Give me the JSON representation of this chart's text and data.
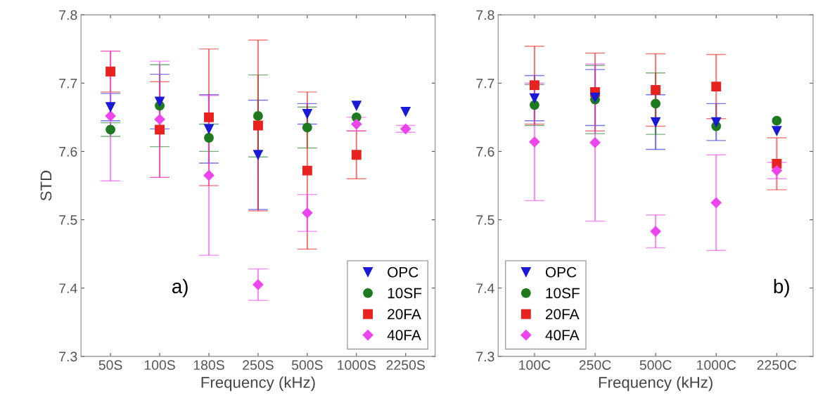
{
  "chart_data": [
    {
      "type": "scatter",
      "xlabel": "Frequency (kHz)",
      "ylabel": "STD",
      "categories": [
        "50S",
        "100S",
        "180S",
        "250S",
        "500S",
        "1000S",
        "2250S"
      ],
      "ylim": [
        7.3,
        7.8
      ],
      "yticks": [
        7.3,
        7.4,
        7.5,
        7.6,
        7.7,
        7.8
      ],
      "grid": false,
      "legend": "bottom right",
      "annotations": [
        "a)"
      ],
      "series": [
        {
          "name": "OPC",
          "color": "#1a1ad6",
          "marker": "triangle",
          "values": [
            7.665,
            7.673,
            7.633,
            7.595,
            7.655,
            7.667,
            7.658
          ],
          "errors": [
            0.02,
            0.04,
            0.05,
            0.08,
            0.015,
            null,
            null
          ]
        },
        {
          "name": "10SF",
          "color": "#1f7a1f",
          "marker": "circle",
          "values": [
            7.632,
            7.667,
            7.62,
            7.652,
            7.635,
            7.65,
            null
          ],
          "errors": [
            0.01,
            0.06,
            0.02,
            0.06,
            0.03,
            null,
            null
          ]
        },
        {
          "name": "20FA",
          "color": "#e8231f",
          "marker": "square",
          "values": [
            7.717,
            7.632,
            7.65,
            7.638,
            7.572,
            7.595,
            null
          ],
          "errors": [
            0.03,
            0.07,
            0.1,
            0.125,
            0.115,
            0.035,
            null
          ]
        },
        {
          "name": "40FA",
          "color": "#ee44ee",
          "marker": "diamond",
          "values": [
            7.652,
            7.647,
            7.565,
            7.405,
            7.51,
            7.64,
            7.633
          ],
          "errors": [
            0.095,
            0.085,
            0.117,
            0.023,
            0.027,
            0.01,
            0.005
          ]
        }
      ]
    },
    {
      "type": "scatter",
      "xlabel": "Frequency (kHz)",
      "categories": [
        "100C",
        "250C",
        "500C",
        "1000C",
        "2250C"
      ],
      "ylim": [
        7.3,
        7.8
      ],
      "yticks": [
        7.3,
        7.4,
        7.5,
        7.6,
        7.7,
        7.8
      ],
      "grid": false,
      "legend": "bottom left",
      "annotations": [
        "b)"
      ],
      "series": [
        {
          "name": "OPC",
          "color": "#1a1ad6",
          "marker": "triangle",
          "values": [
            7.678,
            7.679,
            7.643,
            7.643,
            7.63
          ],
          "errors": [
            0.033,
            0.041,
            0.04,
            0.027,
            null
          ]
        },
        {
          "name": "10SF",
          "color": "#1f7a1f",
          "marker": "circle",
          "values": [
            7.668,
            7.676,
            7.67,
            7.637,
            7.645
          ],
          "errors": [
            0.03,
            0.05,
            0.045,
            null,
            null
          ]
        },
        {
          "name": "20FA",
          "color": "#e8231f",
          "marker": "square",
          "values": [
            7.697,
            7.687,
            7.69,
            7.695,
            7.582
          ],
          "errors": [
            0.057,
            0.057,
            0.053,
            0.047,
            0.038
          ]
        },
        {
          "name": "40FA",
          "color": "#ee44ee",
          "marker": "diamond",
          "values": [
            7.614,
            7.613,
            7.483,
            7.525,
            7.572
          ],
          "errors": [
            0.086,
            0.115,
            0.024,
            0.07,
            0.012
          ]
        }
      ]
    }
  ]
}
